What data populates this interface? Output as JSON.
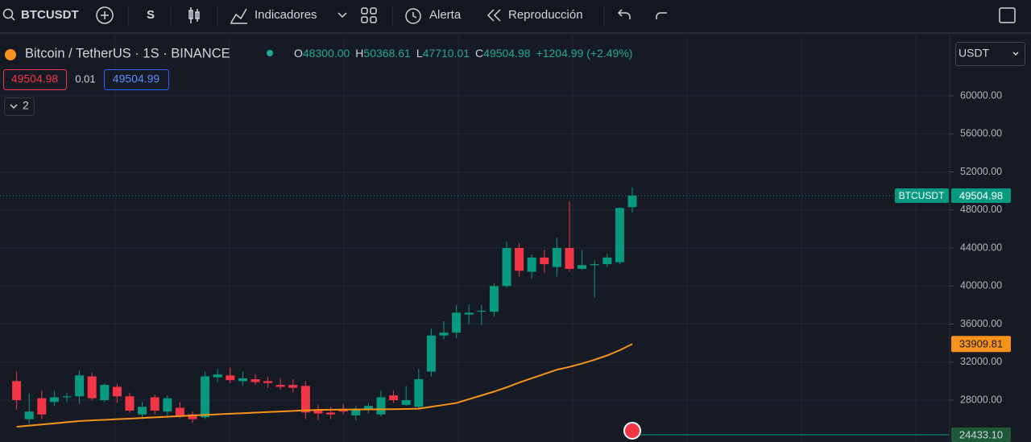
{
  "toolbar": {
    "symbol": "BTCUSDT",
    "interval": "S",
    "indicators": "Indicadores",
    "alert": "Alerta",
    "replay": "Reproducción"
  },
  "legend": {
    "title": "Bitcoin / TetherUS · 1S · BINANCE",
    "open_label": "O",
    "open": "48300.00",
    "high_label": "H",
    "high": "50368.61",
    "low_label": "L",
    "low": "47710.01",
    "close_label": "C",
    "close": "49504.98",
    "change": "+1204.99 (+2.49%)"
  },
  "order": {
    "sell": "49504.98",
    "spread": "0.01",
    "buy": "49504.99"
  },
  "indicators_count": "2",
  "currency": "USDT",
  "price_tag": {
    "symbol": "BTCUSDT",
    "value": "49504.98"
  },
  "ma_tag": "33909.81",
  "volume_tag": "24433.10",
  "chart_data": {
    "type": "candlestick",
    "up_color": "#089981",
    "down_color": "#f23645",
    "ma_color": "#f7931a",
    "grid": true,
    "ylim": [
      23600,
      66350
    ],
    "yticks": [
      {
        "value": 60000,
        "label": "60000.00"
      },
      {
        "value": 56000,
        "label": "56000.00"
      },
      {
        "value": 52000,
        "label": "52000.00"
      },
      {
        "value": 48000,
        "label": "48000.00"
      },
      {
        "value": 44000,
        "label": "44000.00"
      },
      {
        "value": 40000,
        "label": "40000.00"
      },
      {
        "value": 36000,
        "label": "36000.00"
      },
      {
        "value": 32000,
        "label": "32000.00"
      },
      {
        "value": 28000,
        "label": "28000.00"
      }
    ],
    "open": [
      30000,
      26000,
      28200,
      27800,
      28300,
      28400,
      30500,
      28000,
      29400,
      28400,
      26500,
      28300,
      26800,
      27200,
      26500,
      26200,
      30400,
      30600,
      30000,
      30200,
      30000,
      29600,
      29600,
      29500,
      26900,
      26700,
      27000,
      26400,
      27000,
      26500,
      28500,
      27500,
      27300,
      31000,
      34800,
      35100,
      37000,
      37300,
      37300,
      40000,
      44000,
      41500,
      43000,
      42000,
      44000,
      41800,
      42200,
      42300,
      42500,
      48300
    ],
    "high": [
      31000,
      28700,
      29000,
      29000,
      28800,
      31100,
      30900,
      29800,
      29700,
      28800,
      27800,
      28600,
      28500,
      27800,
      26800,
      31000,
      31300,
      31400,
      31000,
      30700,
      30500,
      30300,
      30200,
      30000,
      27500,
      27300,
      27600,
      27400,
      27700,
      29000,
      29000,
      29500,
      31300,
      35500,
      36300,
      38000,
      38100,
      38000,
      40300,
      44700,
      44500,
      43300,
      43800,
      45100,
      48900,
      43800,
      42700,
      43400,
      48300,
      50368.61
    ],
    "low": [
      27000,
      25500,
      26000,
      27400,
      27800,
      27600,
      28000,
      27800,
      27700,
      26700,
      26000,
      26500,
      26200,
      26100,
      25600,
      26000,
      29900,
      29800,
      29500,
      29600,
      29300,
      29100,
      28800,
      26000,
      25900,
      26000,
      26500,
      25900,
      26600,
      26300,
      27700,
      27400,
      27000,
      30500,
      34400,
      34500,
      36000,
      35900,
      36800,
      39800,
      41000,
      40800,
      41400,
      41000,
      41500,
      41700,
      38800,
      42000,
      42300,
      47710.01
    ],
    "close": [
      28000,
      26800,
      26500,
      28300,
      28400,
      30600,
      28200,
      29600,
      28400,
      26900,
      27300,
      26900,
      28200,
      26300,
      26000,
      30500,
      30700,
      30100,
      30300,
      29900,
      29800,
      29400,
      29300,
      26700,
      26600,
      26500,
      26800,
      27100,
      27400,
      28300,
      28000,
      28000,
      30200,
      34800,
      35100,
      37200,
      37200,
      37400,
      40000,
      44000,
      41600,
      43000,
      42300,
      44000,
      41800,
      42200,
      42300,
      43000,
      48200,
      49504.98
    ],
    "ma": [
      25200,
      25320,
      25440,
      25560,
      25680,
      25800,
      25870,
      25930,
      26000,
      26060,
      26130,
      26190,
      26260,
      26320,
      26390,
      26450,
      26510,
      26570,
      26630,
      26690,
      26750,
      26810,
      26870,
      26930,
      26980,
      27000,
      27010,
      27020,
      27030,
      27040,
      27050,
      27070,
      27100,
      27300,
      27500,
      27700,
      28100,
      28500,
      28900,
      29350,
      29850,
      30300,
      30750,
      31200,
      31500,
      31850,
      32250,
      32700,
      33250,
      33910
    ]
  }
}
